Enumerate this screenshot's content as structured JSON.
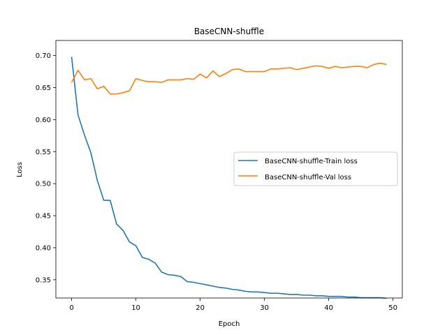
{
  "chart_data": {
    "type": "line",
    "title": "BaseCNN-shuffle",
    "xlabel": "Epoch",
    "ylabel": "Loss",
    "xlim": [
      -2.45,
      51.45
    ],
    "ylim": [
      0.3215,
      0.7235
    ],
    "xticks": [
      0,
      10,
      20,
      30,
      40,
      50
    ],
    "yticks": [
      0.35,
      0.4,
      0.45,
      0.5,
      0.55,
      0.6,
      0.65,
      0.7
    ],
    "xtick_labels": [
      "0",
      "10",
      "20",
      "30",
      "40",
      "50"
    ],
    "ytick_labels": [
      "0.35",
      "0.40",
      "0.45",
      "0.50",
      "0.55",
      "0.60",
      "0.65",
      "0.70"
    ],
    "grid": false,
    "legend_position": "center-right",
    "x": [
      0,
      1,
      2,
      3,
      4,
      5,
      6,
      7,
      8,
      9,
      10,
      11,
      12,
      13,
      14,
      15,
      16,
      17,
      18,
      19,
      20,
      21,
      22,
      23,
      24,
      25,
      26,
      27,
      28,
      29,
      30,
      31,
      32,
      33,
      34,
      35,
      36,
      37,
      38,
      39,
      40,
      41,
      42,
      43,
      44,
      45,
      46,
      47,
      48,
      49
    ],
    "series": [
      {
        "name": "BaseCNN-shuffle-Train loss",
        "color": "#1f77b4",
        "values": [
          0.698,
          0.607,
          0.576,
          0.548,
          0.505,
          0.474,
          0.474,
          0.437,
          0.427,
          0.409,
          0.403,
          0.385,
          0.382,
          0.376,
          0.362,
          0.358,
          0.357,
          0.355,
          0.347,
          0.346,
          0.344,
          0.342,
          0.34,
          0.338,
          0.337,
          0.335,
          0.334,
          0.332,
          0.331,
          0.331,
          0.33,
          0.329,
          0.329,
          0.328,
          0.327,
          0.327,
          0.326,
          0.326,
          0.325,
          0.325,
          0.324,
          0.324,
          0.324,
          0.323,
          0.323,
          0.322,
          0.322,
          0.322,
          0.322,
          0.321
        ]
      },
      {
        "name": "BaseCNN-shuffle-Val loss",
        "color": "#ff7f0e",
        "values": [
          0.658,
          0.677,
          0.662,
          0.664,
          0.648,
          0.652,
          0.64,
          0.64,
          0.642,
          0.645,
          0.664,
          0.661,
          0.659,
          0.659,
          0.658,
          0.662,
          0.662,
          0.662,
          0.664,
          0.663,
          0.671,
          0.665,
          0.676,
          0.667,
          0.672,
          0.678,
          0.679,
          0.675,
          0.675,
          0.675,
          0.675,
          0.679,
          0.679,
          0.68,
          0.681,
          0.678,
          0.68,
          0.682,
          0.684,
          0.683,
          0.68,
          0.683,
          0.681,
          0.682,
          0.683,
          0.683,
          0.681,
          0.686,
          0.688,
          0.686
        ]
      }
    ]
  }
}
